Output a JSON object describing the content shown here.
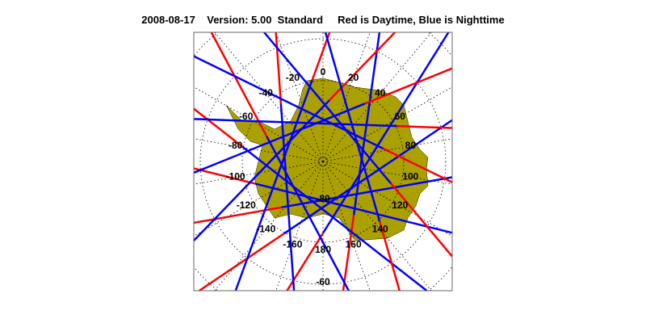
{
  "title": "2008-08-17    Version: 5.00  Standard     Red is Daytime, Blue is Nighttime",
  "map": {
    "projection": "south polar stereographic",
    "land_color": "#aaa000",
    "day_color": "#ff0000",
    "night_color": "#0000ff",
    "longitude_labels": [
      "0",
      "20",
      "40",
      "60",
      "80",
      "100",
      "120",
      "140",
      "160",
      "180",
      "-160",
      "-140",
      "-120",
      "-100",
      "-80",
      "-60",
      "-40",
      "-20"
    ],
    "longitude_label_values": [
      0,
      20,
      40,
      60,
      80,
      100,
      120,
      140,
      160,
      180,
      -160,
      -140,
      -120,
      -100,
      -80,
      -60,
      -40,
      -20
    ],
    "latitude_labels": [
      "-80",
      "-60"
    ]
  }
}
